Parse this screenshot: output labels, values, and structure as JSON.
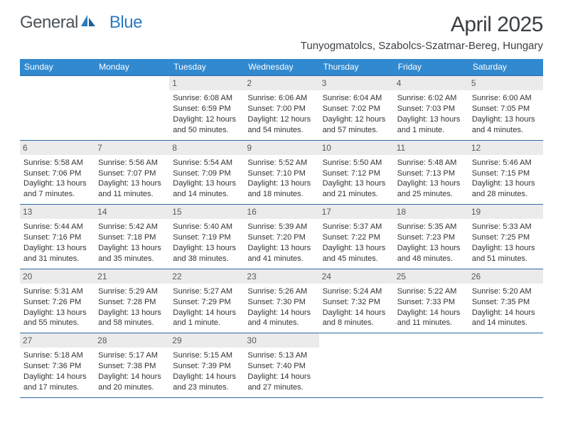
{
  "logo": {
    "general": "General",
    "blue": "Blue"
  },
  "month_title": "April 2025",
  "location": "Tunyogmatolcs, Szabolcs-Szatmar-Bereg, Hungary",
  "colors": {
    "header_bg": "#3189cf",
    "header_text": "#ffffff",
    "daynum_bg": "#ebebeb",
    "rule": "#2d6ba3",
    "body_text": "#333333",
    "logo_general": "#4a5258",
    "logo_blue": "#2c7ac0",
    "title_text": "#3a3f44"
  },
  "days_of_week": [
    "Sunday",
    "Monday",
    "Tuesday",
    "Wednesday",
    "Thursday",
    "Friday",
    "Saturday"
  ],
  "leading_blanks": 2,
  "cells": [
    {
      "n": "1",
      "sunrise": "Sunrise: 6:08 AM",
      "sunset": "Sunset: 6:59 PM",
      "day1": "Daylight: 12 hours",
      "day2": "and 50 minutes."
    },
    {
      "n": "2",
      "sunrise": "Sunrise: 6:06 AM",
      "sunset": "Sunset: 7:00 PM",
      "day1": "Daylight: 12 hours",
      "day2": "and 54 minutes."
    },
    {
      "n": "3",
      "sunrise": "Sunrise: 6:04 AM",
      "sunset": "Sunset: 7:02 PM",
      "day1": "Daylight: 12 hours",
      "day2": "and 57 minutes."
    },
    {
      "n": "4",
      "sunrise": "Sunrise: 6:02 AM",
      "sunset": "Sunset: 7:03 PM",
      "day1": "Daylight: 13 hours",
      "day2": "and 1 minute."
    },
    {
      "n": "5",
      "sunrise": "Sunrise: 6:00 AM",
      "sunset": "Sunset: 7:05 PM",
      "day1": "Daylight: 13 hours",
      "day2": "and 4 minutes."
    },
    {
      "n": "6",
      "sunrise": "Sunrise: 5:58 AM",
      "sunset": "Sunset: 7:06 PM",
      "day1": "Daylight: 13 hours",
      "day2": "and 7 minutes."
    },
    {
      "n": "7",
      "sunrise": "Sunrise: 5:56 AM",
      "sunset": "Sunset: 7:07 PM",
      "day1": "Daylight: 13 hours",
      "day2": "and 11 minutes."
    },
    {
      "n": "8",
      "sunrise": "Sunrise: 5:54 AM",
      "sunset": "Sunset: 7:09 PM",
      "day1": "Daylight: 13 hours",
      "day2": "and 14 minutes."
    },
    {
      "n": "9",
      "sunrise": "Sunrise: 5:52 AM",
      "sunset": "Sunset: 7:10 PM",
      "day1": "Daylight: 13 hours",
      "day2": "and 18 minutes."
    },
    {
      "n": "10",
      "sunrise": "Sunrise: 5:50 AM",
      "sunset": "Sunset: 7:12 PM",
      "day1": "Daylight: 13 hours",
      "day2": "and 21 minutes."
    },
    {
      "n": "11",
      "sunrise": "Sunrise: 5:48 AM",
      "sunset": "Sunset: 7:13 PM",
      "day1": "Daylight: 13 hours",
      "day2": "and 25 minutes."
    },
    {
      "n": "12",
      "sunrise": "Sunrise: 5:46 AM",
      "sunset": "Sunset: 7:15 PM",
      "day1": "Daylight: 13 hours",
      "day2": "and 28 minutes."
    },
    {
      "n": "13",
      "sunrise": "Sunrise: 5:44 AM",
      "sunset": "Sunset: 7:16 PM",
      "day1": "Daylight: 13 hours",
      "day2": "and 31 minutes."
    },
    {
      "n": "14",
      "sunrise": "Sunrise: 5:42 AM",
      "sunset": "Sunset: 7:18 PM",
      "day1": "Daylight: 13 hours",
      "day2": "and 35 minutes."
    },
    {
      "n": "15",
      "sunrise": "Sunrise: 5:40 AM",
      "sunset": "Sunset: 7:19 PM",
      "day1": "Daylight: 13 hours",
      "day2": "and 38 minutes."
    },
    {
      "n": "16",
      "sunrise": "Sunrise: 5:39 AM",
      "sunset": "Sunset: 7:20 PM",
      "day1": "Daylight: 13 hours",
      "day2": "and 41 minutes."
    },
    {
      "n": "17",
      "sunrise": "Sunrise: 5:37 AM",
      "sunset": "Sunset: 7:22 PM",
      "day1": "Daylight: 13 hours",
      "day2": "and 45 minutes."
    },
    {
      "n": "18",
      "sunrise": "Sunrise: 5:35 AM",
      "sunset": "Sunset: 7:23 PM",
      "day1": "Daylight: 13 hours",
      "day2": "and 48 minutes."
    },
    {
      "n": "19",
      "sunrise": "Sunrise: 5:33 AM",
      "sunset": "Sunset: 7:25 PM",
      "day1": "Daylight: 13 hours",
      "day2": "and 51 minutes."
    },
    {
      "n": "20",
      "sunrise": "Sunrise: 5:31 AM",
      "sunset": "Sunset: 7:26 PM",
      "day1": "Daylight: 13 hours",
      "day2": "and 55 minutes."
    },
    {
      "n": "21",
      "sunrise": "Sunrise: 5:29 AM",
      "sunset": "Sunset: 7:28 PM",
      "day1": "Daylight: 13 hours",
      "day2": "and 58 minutes."
    },
    {
      "n": "22",
      "sunrise": "Sunrise: 5:27 AM",
      "sunset": "Sunset: 7:29 PM",
      "day1": "Daylight: 14 hours",
      "day2": "and 1 minute."
    },
    {
      "n": "23",
      "sunrise": "Sunrise: 5:26 AM",
      "sunset": "Sunset: 7:30 PM",
      "day1": "Daylight: 14 hours",
      "day2": "and 4 minutes."
    },
    {
      "n": "24",
      "sunrise": "Sunrise: 5:24 AM",
      "sunset": "Sunset: 7:32 PM",
      "day1": "Daylight: 14 hours",
      "day2": "and 8 minutes."
    },
    {
      "n": "25",
      "sunrise": "Sunrise: 5:22 AM",
      "sunset": "Sunset: 7:33 PM",
      "day1": "Daylight: 14 hours",
      "day2": "and 11 minutes."
    },
    {
      "n": "26",
      "sunrise": "Sunrise: 5:20 AM",
      "sunset": "Sunset: 7:35 PM",
      "day1": "Daylight: 14 hours",
      "day2": "and 14 minutes."
    },
    {
      "n": "27",
      "sunrise": "Sunrise: 5:18 AM",
      "sunset": "Sunset: 7:36 PM",
      "day1": "Daylight: 14 hours",
      "day2": "and 17 minutes."
    },
    {
      "n": "28",
      "sunrise": "Sunrise: 5:17 AM",
      "sunset": "Sunset: 7:38 PM",
      "day1": "Daylight: 14 hours",
      "day2": "and 20 minutes."
    },
    {
      "n": "29",
      "sunrise": "Sunrise: 5:15 AM",
      "sunset": "Sunset: 7:39 PM",
      "day1": "Daylight: 14 hours",
      "day2": "and 23 minutes."
    },
    {
      "n": "30",
      "sunrise": "Sunrise: 5:13 AM",
      "sunset": "Sunset: 7:40 PM",
      "day1": "Daylight: 14 hours",
      "day2": "and 27 minutes."
    }
  ]
}
